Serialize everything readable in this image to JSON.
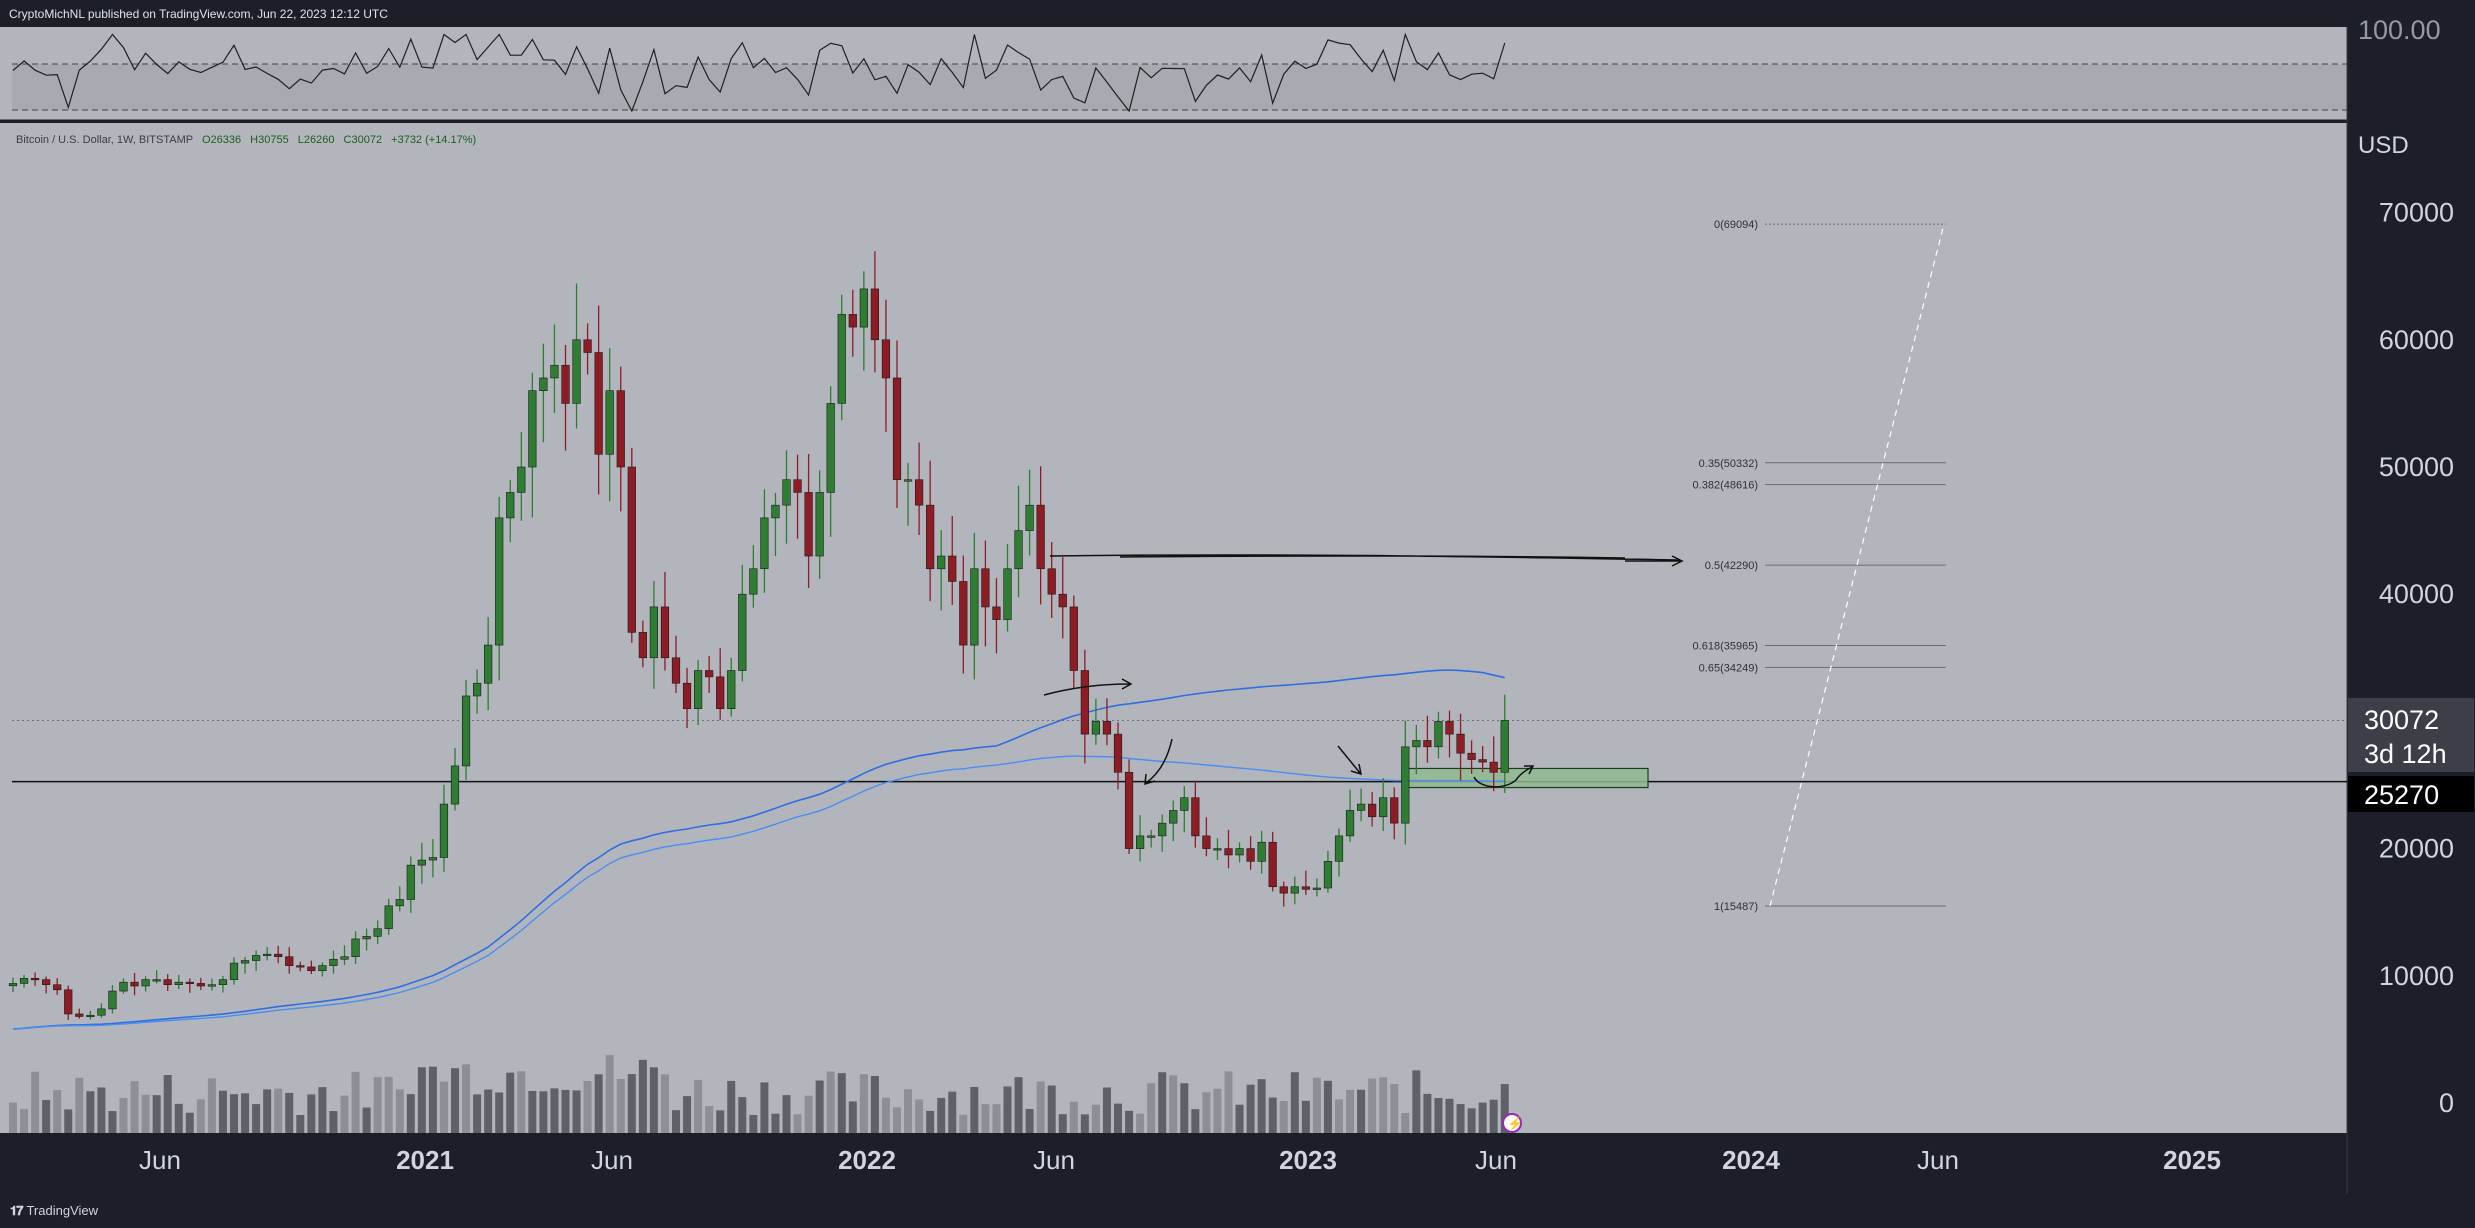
{
  "header": {
    "published_text": "CryptoMichNL published on TradingView.com, Jun 22, 2023 12:12 UTC"
  },
  "footer": {
    "logo_mark": "𝟏𝟕",
    "logo_text": "TradingView"
  },
  "symbol": {
    "title": "Bitcoin / U.S. Dollar, 1W, BITSTAMP",
    "open": "O26336",
    "high": "H30755",
    "low": "L26260",
    "close": "C30072",
    "change": "+3732 (+14.17%)"
  },
  "price_axis": {
    "unit": "USD",
    "ticks": [
      "70000",
      "60000",
      "50000",
      "40000",
      "30000",
      "20000",
      "10000",
      "0"
    ],
    "rsi_top_tick": "100.00",
    "last_price": "30072",
    "countdown": "3d 12h",
    "level_label": "25270"
  },
  "time_axis": {
    "labels": [
      "Jun",
      "2021",
      "Jun",
      "2022",
      "Jun",
      "2023",
      "Jun",
      "2024",
      "Jun",
      "2025"
    ]
  },
  "colors": {
    "background": "#b3b5bd",
    "bull": "#2e7d32",
    "bear": "#8e1c25",
    "ma_fast": "#2f6fe0",
    "ma_slow": "#4a8ef0",
    "zone": "#8fb88f"
  },
  "chart_data": {
    "type": "candlestick",
    "interval": "1W",
    "exchange": "BITSTAMP",
    "pair": "BTC/USD",
    "ylim": [
      0,
      72000
    ],
    "weekly_closes_approx": [
      9400,
      9800,
      9700,
      9300,
      8900,
      7000,
      6800,
      6900,
      7400,
      8800,
      9500,
      9200,
      9700,
      9700,
      9300,
      9500,
      9400,
      9200,
      9300,
      9700,
      11000,
      11200,
      11600,
      11700,
      11500,
      10800,
      10700,
      10400,
      10800,
      11300,
      11500,
      12900,
      13100,
      13700,
      15500,
      16000,
      18700,
      19100,
      19300,
      23500,
      26500,
      32000,
      33000,
      36000,
      46000,
      48000,
      50000,
      56000,
      57000,
      58000,
      55000,
      60000,
      59000,
      51000,
      56000,
      50000,
      37000,
      35000,
      39000,
      35000,
      33000,
      31000,
      34000,
      33500,
      31000,
      34000,
      40000,
      42000,
      46000,
      47000,
      49000,
      48000,
      43000,
      48000,
      55000,
      62000,
      61000,
      64000,
      60000,
      57000,
      49000,
      49000,
      47000,
      42000,
      43000,
      41000,
      36000,
      42000,
      39000,
      38000,
      42000,
      45000,
      47000,
      42000,
      40000,
      39000,
      34000,
      29000,
      30000,
      29000,
      26000,
      20000,
      21000,
      21000,
      22000,
      23000,
      24000,
      21000,
      20000,
      20000,
      19500,
      20000,
      19000,
      20500,
      17000,
      16500,
      17000,
      16800,
      16900,
      19000,
      21000,
      23000,
      23500,
      22500,
      24000,
      22000,
      28000,
      28500,
      28000,
      30000,
      29000,
      27500,
      27000,
      26800,
      26000,
      30072
    ],
    "fibonacci": [
      {
        "ratio": "0",
        "price": 69094,
        "label": "0(69094)"
      },
      {
        "ratio": "0.35",
        "price": 50332,
        "label": "0.35(50332)"
      },
      {
        "ratio": "0.382",
        "price": 48616,
        "label": "0.382(48616)"
      },
      {
        "ratio": "0.5",
        "price": 42290,
        "label": "0.5(42290)"
      },
      {
        "ratio": "0.618",
        "price": 35965,
        "label": "0.618(35965)"
      },
      {
        "ratio": "0.65",
        "price": 34249,
        "label": "0.65(34249)"
      },
      {
        "ratio": "1",
        "price": 15487,
        "label": "1(15487)"
      }
    ],
    "horizontal_level": 25270,
    "support_zone": [
      24800,
      26300
    ],
    "last_price": 30072
  }
}
